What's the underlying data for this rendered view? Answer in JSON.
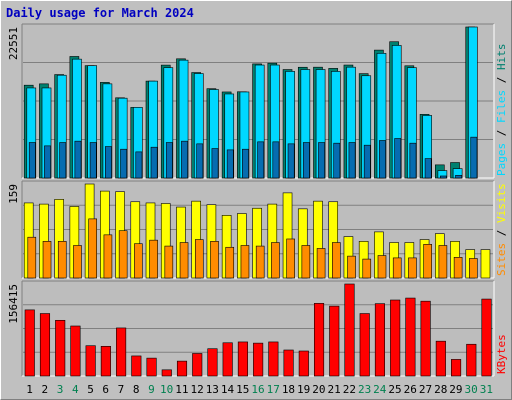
{
  "title": "Daily usage for March 2024",
  "colors": {
    "background": "#c0c0c0",
    "plot_bg": "#bdbdbd",
    "title": "#0000c0",
    "pages": "#066cb0",
    "files": "#00d8ff",
    "hits": "#00806f",
    "sites": "#ff8c00",
    "visits": "#ffff00",
    "kbytes": "#ff0000",
    "weekend_day": "#00804f"
  },
  "chart_data": [
    {
      "type": "bar",
      "id": "hits-files-pages",
      "ymax_label": "22551",
      "ylim": [
        0,
        22551
      ],
      "side_label": {
        "parts": [
          "Pages",
          " / ",
          "Files",
          " / ",
          "Hits"
        ]
      },
      "series": [
        {
          "name": "Hits",
          "values": [
            13860,
            14060,
            15450,
            18150,
            16780,
            14280,
            11980,
            10550,
            14470,
            16860,
            17800,
            15750,
            13340,
            12850,
            12880,
            17040,
            17150,
            16200,
            16540,
            16550,
            16370,
            16870,
            15590,
            19100,
            20350,
            16760,
            9510,
            1960,
            2310,
            22551,
            0
          ]
        },
        {
          "name": "Files",
          "values": [
            13450,
            13450,
            15350,
            17750,
            16780,
            14060,
            11920,
            10550,
            14470,
            16480,
            17600,
            15600,
            13210,
            12550,
            12850,
            16870,
            16870,
            15920,
            16200,
            16200,
            15920,
            16550,
            15270,
            18620,
            19800,
            16480,
            9340,
            1110,
            1400,
            22551,
            0
          ]
        },
        {
          "name": "Pages",
          "values": [
            5300,
            4800,
            5300,
            5500,
            5300,
            4700,
            4300,
            3900,
            4600,
            5300,
            5500,
            5100,
            4400,
            4200,
            4300,
            5400,
            5400,
            5100,
            5300,
            5300,
            5200,
            5300,
            4900,
            5600,
            5900,
            5200,
            2900,
            300,
            400,
            6100,
            0
          ]
        }
      ]
    },
    {
      "type": "bar",
      "id": "visits-sites",
      "ymax_label": "159",
      "ylim": [
        0,
        159
      ],
      "side_label": {
        "parts": [
          "Sites",
          " / ",
          "Visits"
        ]
      },
      "series": [
        {
          "name": "Visits",
          "values": [
            127,
            125,
            133,
            121,
            159,
            147,
            146,
            129,
            127,
            126,
            120,
            130,
            124,
            106,
            109,
            118,
            125,
            144,
            117,
            130,
            129,
            70,
            62,
            78,
            60,
            60,
            65,
            75,
            62,
            48,
            48
          ]
        },
        {
          "name": "Sites",
          "values": [
            69,
            62,
            62,
            55,
            100,
            73,
            80,
            58,
            64,
            54,
            60,
            65,
            62,
            52,
            55,
            54,
            60,
            66,
            55,
            50,
            60,
            37,
            32,
            38,
            34,
            34,
            57,
            55,
            35,
            33,
            0
          ]
        }
      ]
    },
    {
      "type": "bar",
      "id": "kbytes",
      "ymax_label": "156415",
      "ylim": [
        0,
        156415
      ],
      "side_label": {
        "parts": [
          "KBytes"
        ]
      },
      "series": [
        {
          "name": "KBytes",
          "values": [
            112400,
            106200,
            94700,
            85000,
            51500,
            50500,
            81700,
            34100,
            30400,
            10500,
            25300,
            38300,
            46400,
            56500,
            57900,
            55900,
            57900,
            44200,
            42500,
            123500,
            118800,
            156415,
            106200,
            123000,
            129200,
            132500,
            127200,
            59200,
            28200,
            54000,
            130800
          ]
        }
      ]
    }
  ],
  "x_days": [
    {
      "label": "1",
      "weekend": false
    },
    {
      "label": "2",
      "weekend": false
    },
    {
      "label": "3",
      "weekend": true
    },
    {
      "label": "4",
      "weekend": true
    },
    {
      "label": "5",
      "weekend": false
    },
    {
      "label": "6",
      "weekend": false
    },
    {
      "label": "7",
      "weekend": false
    },
    {
      "label": "8",
      "weekend": false
    },
    {
      "label": "9",
      "weekend": true
    },
    {
      "label": "10",
      "weekend": true
    },
    {
      "label": "11",
      "weekend": false
    },
    {
      "label": "12",
      "weekend": false
    },
    {
      "label": "13",
      "weekend": false
    },
    {
      "label": "14",
      "weekend": false
    },
    {
      "label": "15",
      "weekend": false
    },
    {
      "label": "16",
      "weekend": true
    },
    {
      "label": "17",
      "weekend": true
    },
    {
      "label": "18",
      "weekend": false
    },
    {
      "label": "19",
      "weekend": false
    },
    {
      "label": "20",
      "weekend": false
    },
    {
      "label": "21",
      "weekend": false
    },
    {
      "label": "22",
      "weekend": false
    },
    {
      "label": "23",
      "weekend": true
    },
    {
      "label": "24",
      "weekend": true
    },
    {
      "label": "25",
      "weekend": false
    },
    {
      "label": "26",
      "weekend": false
    },
    {
      "label": "27",
      "weekend": false
    },
    {
      "label": "28",
      "weekend": false
    },
    {
      "label": "29",
      "weekend": false
    },
    {
      "label": "30",
      "weekend": true
    },
    {
      "label": "31",
      "weekend": true
    }
  ]
}
